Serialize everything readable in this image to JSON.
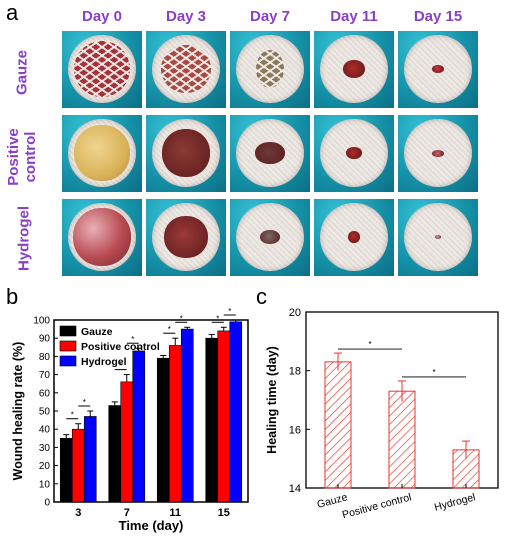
{
  "panels": {
    "a": "a",
    "b": "b",
    "c": "c"
  },
  "photo_grid": {
    "days": [
      "Day 0",
      "Day 3",
      "Day 7",
      "Day 11",
      "Day 15"
    ],
    "rows": [
      "Gauze",
      "Positive control",
      "Hydrogel"
    ],
    "row_labels": [
      [
        "Gauze"
      ],
      [
        "Positive",
        "control"
      ],
      [
        "Hydrogel"
      ]
    ]
  },
  "chart_data": [
    {
      "type": "bar",
      "xlabel": "Time (day)",
      "ylabel": "Wound healing rate (%)",
      "categories": [
        "3",
        "7",
        "11",
        "15"
      ],
      "ylim": [
        0,
        100
      ],
      "yticks": [
        "0",
        "10",
        "20",
        "30",
        "40",
        "50",
        "60",
        "70",
        "80",
        "90",
        "100"
      ],
      "legend_position": "top-left",
      "series": [
        {
          "name": "Gauze",
          "color": "#000000",
          "values": [
            35,
            53,
            79,
            90
          ],
          "errors": [
            2,
            2,
            1.5,
            2
          ]
        },
        {
          "name": "Positive control",
          "color": "#ff0000",
          "values": [
            40,
            66,
            86,
            94
          ],
          "errors": [
            3,
            4,
            4,
            2
          ]
        },
        {
          "name": "Hydrogel",
          "color": "#0000ff",
          "values": [
            47,
            83,
            95,
            99
          ],
          "errors": [
            3,
            1.5,
            1,
            1
          ]
        }
      ],
      "significance": "*"
    },
    {
      "type": "bar",
      "xlabel": "",
      "ylabel": "Healing time (day)",
      "categories": [
        "Gauze",
        "Positive control",
        "Hydrogel"
      ],
      "values": [
        18.3,
        17.3,
        15.3
      ],
      "errors": [
        0.3,
        0.35,
        0.3
      ],
      "ylim": [
        14,
        20
      ],
      "yticks": [
        "14",
        "16",
        "18",
        "20"
      ],
      "bar_color": "#e8332a",
      "hatched": true,
      "significance": "*"
    }
  ]
}
